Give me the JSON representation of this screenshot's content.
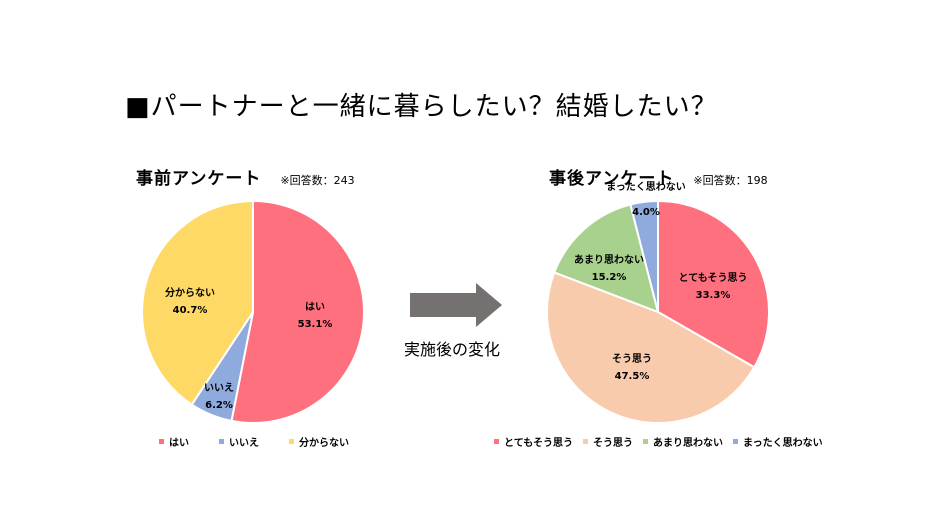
{
  "title": "■パートナーと一緒に暮らしたい？結婚したい？",
  "arrow_caption": "実施後の変化",
  "left": {
    "name": "事前アンケート",
    "count": "※回答数：243"
  },
  "right": {
    "name": "事後アンケート",
    "count": "※回答数：198"
  },
  "chart_data": [
    {
      "type": "pie",
      "title": "事前アンケート",
      "subtitle": "※回答数：243",
      "n": 243,
      "categories": [
        "はい",
        "いいえ",
        "分からない"
      ],
      "values": [
        53.1,
        6.2,
        40.7
      ],
      "labels": [
        "53.1%",
        "6.2%",
        "40.7%"
      ],
      "colors": [
        "#FF707E",
        "#8FAADC",
        "#FFD966"
      ],
      "start_angle": "top",
      "direction": "clockwise",
      "legend_position": "bottom"
    },
    {
      "type": "pie",
      "title": "事後アンケート",
      "subtitle": "※回答数：198",
      "n": 198,
      "categories": [
        "とてもそう思う",
        "そう思う",
        "あまり思わない",
        "まったく思わない"
      ],
      "values": [
        33.3,
        47.5,
        15.2,
        4.0
      ],
      "labels": [
        "33.3%",
        "47.5%",
        "15.2%",
        "4.0%"
      ],
      "colors": [
        "#FF707E",
        "#F8CBAD",
        "#A9D18E",
        "#8FAADC"
      ],
      "start_angle": "top",
      "direction": "clockwise",
      "legend_position": "bottom"
    }
  ]
}
